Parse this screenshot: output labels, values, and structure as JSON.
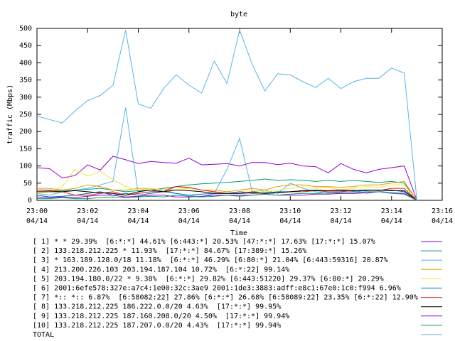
{
  "chart_data": {
    "type": "line",
    "title": "byte",
    "ylabel": "traffic (Mbps)",
    "xlabel": "Time",
    "x": [
      "23:00:00",
      "23:00:30",
      "23:01:00",
      "23:01:30",
      "23:02:00",
      "23:02:30",
      "23:03:00",
      "23:03:30",
      "23:04:00",
      "23:04:30",
      "23:05:00",
      "23:05:30",
      "23:06:00",
      "23:06:30",
      "23:07:00",
      "23:07:30",
      "23:08:00",
      "23:08:30",
      "23:09:00",
      "23:09:30",
      "23:10:00",
      "23:10:30",
      "23:11:00",
      "23:11:30",
      "23:12:00",
      "23:12:30",
      "23:13:00",
      "23:13:30",
      "23:14:00",
      "23:14:30",
      "23:15:00"
    ],
    "xlim": [
      "23:00",
      "23:16"
    ],
    "xticks": [
      {
        "value": "23:00",
        "label": [
          "23:00",
          "04/14"
        ]
      },
      {
        "value": "23:02",
        "label": [
          "23:02",
          "04/14"
        ]
      },
      {
        "value": "23:04",
        "label": [
          "23:04",
          "04/14"
        ]
      },
      {
        "value": "23:06",
        "label": [
          "23:06",
          "04/14"
        ]
      },
      {
        "value": "23:08",
        "label": [
          "23:08",
          "04/14"
        ]
      },
      {
        "value": "23:10",
        "label": [
          "23:10",
          "04/14"
        ]
      },
      {
        "value": "23:12",
        "label": [
          "23:12",
          "04/14"
        ]
      },
      {
        "value": "23:14",
        "label": [
          "23:14",
          "04/14"
        ]
      },
      {
        "value": "23:16",
        "label": [
          "23:16",
          "04/14"
        ]
      }
    ],
    "ylim": [
      0,
      500
    ],
    "yticks": [
      0,
      50,
      100,
      150,
      200,
      250,
      300,
      350,
      400,
      450,
      500
    ],
    "grid": false,
    "series": [
      {
        "name": "[ 1] * * 29.39%  [6:*:*] 44.61% [6:443:*] 20.53% [47:*:*] 17.63% [17:*:*] 15.07%",
        "color": "#9400d3",
        "values": [
          95,
          92,
          65,
          72,
          103,
          88,
          128,
          118,
          107,
          113,
          110,
          108,
          123,
          103,
          105,
          107,
          100,
          110,
          110,
          104,
          108,
          100,
          98,
          80,
          107,
          90,
          80,
          90,
          95,
          100,
          0
        ]
      },
      {
        "name": "[ 2] 133.218.212.225 * 11.93%  [17:*:*] 84.67% [17:389:*] 15.26%",
        "color": "#009e73",
        "values": [
          30,
          30,
          28,
          30,
          32,
          35,
          30,
          25,
          28,
          30,
          35,
          40,
          45,
          48,
          50,
          52,
          55,
          58,
          62,
          58,
          60,
          58,
          55,
          58,
          55,
          58,
          55,
          52,
          55,
          50,
          0
        ]
      },
      {
        "name": "[ 3] * 163.189.128.0/18 11.18%  [6:*:*] 46.29% [6:80:*] 21.04% [6:443:59316] 20.87%",
        "color": "#56b4e9",
        "values": [
          20,
          15,
          25,
          30,
          35,
          45,
          55,
          270,
          20,
          25,
          30,
          20,
          15,
          10,
          20,
          90,
          180,
          25,
          30,
          20,
          50,
          35,
          25,
          20,
          25,
          30,
          20,
          25,
          30,
          25,
          0
        ]
      },
      {
        "name": "[ 4] 213.200.226.103 203.194.187.104 10.72%  [6:*:22] 99.14%",
        "color": "#e69f00",
        "values": [
          35,
          35,
          30,
          35,
          45,
          40,
          30,
          30,
          35,
          35,
          30,
          40,
          35,
          30,
          30,
          25,
          30,
          35,
          30,
          40,
          45,
          45,
          40,
          40,
          38,
          40,
          45,
          45,
          50,
          55,
          0
        ]
      },
      {
        "name": "[ 5] 203.194.180.0/22 * 9.38%  [6:*:*] 29.82% [6:443:51220] 29.37% [6:80:*] 20.29%",
        "color": "#f0e442",
        "values": [
          20,
          25,
          40,
          90,
          70,
          85,
          60,
          40,
          30,
          35,
          30,
          30,
          35,
          30,
          25,
          20,
          25,
          30,
          25,
          30,
          35,
          40,
          35,
          38,
          30,
          35,
          40,
          38,
          45,
          45,
          0
        ]
      },
      {
        "name": "[ 6] 2001:6efe578:327e:a7c4:1e00:32c:3ae9 2001:1de3:3883:adff:e8c1:67e0:1c0:f994 6.96%",
        "color": "#0072b2",
        "values": [
          15,
          10,
          12,
          15,
          20,
          25,
          15,
          20,
          15,
          20,
          25,
          20,
          15,
          18,
          20,
          20,
          25,
          20,
          22,
          25,
          25,
          28,
          30,
          28,
          28,
          26,
          28,
          30,
          30,
          25,
          0
        ]
      },
      {
        "name": "[ 7] *:: *:: 6.87%  [6:58082:22] 27.86% [6:*:*] 26.68% [6:58089:22] 23.35% [6:*:22] 12.90%",
        "color": "#e51e10",
        "values": [
          30,
          28,
          25,
          15,
          15,
          20,
          25,
          15,
          20,
          25,
          25,
          40,
          38,
          30,
          25,
          20,
          20,
          25,
          20,
          22,
          25,
          25,
          28,
          25,
          25,
          28,
          30,
          28,
          35,
          35,
          0
        ]
      },
      {
        "name": "[ 8] 133.218.212.225 186.222.0.0/20 4.63%  [17:*:*] 99.95%",
        "color": "#000000",
        "values": [
          25,
          25,
          25,
          28,
          25,
          22,
          20,
          15,
          25,
          30,
          25,
          30,
          28,
          25,
          20,
          20,
          20,
          22,
          20,
          22,
          25,
          28,
          28,
          28,
          30,
          28,
          30,
          30,
          28,
          28,
          0
        ]
      },
      {
        "name": "[ 9] 133.218.212.225 187.160.208.0/20 4.50%  [17:*:*] 99.94%",
        "color": "#9400d3",
        "values": [
          10,
          8,
          10,
          8,
          12,
          15,
          15,
          10,
          12,
          15,
          15,
          10,
          10,
          12,
          15,
          15,
          15,
          15,
          18,
          15,
          15,
          15,
          18,
          18,
          20,
          20,
          22,
          25,
          22,
          20,
          0
        ]
      },
      {
        "name": "[10] 133.218.212.225 187.207.0.0/20 4.43%  [17:*:*] 99.94%",
        "color": "#009e73",
        "values": [
          5,
          5,
          8,
          5,
          5,
          8,
          10,
          8,
          10,
          12,
          10,
          15,
          12,
          10,
          12,
          15,
          12,
          15,
          18,
          15,
          18,
          20,
          20,
          22,
          22,
          22,
          25,
          25,
          20,
          18,
          0
        ]
      },
      {
        "name": "TOTAL",
        "color": "#56b4e9",
        "values": [
          245,
          235,
          225,
          260,
          290,
          305,
          335,
          495,
          280,
          268,
          325,
          365,
          335,
          312,
          405,
          340,
          495,
          395,
          318,
          368,
          365,
          345,
          328,
          355,
          325,
          345,
          355,
          355,
          385,
          370,
          0
        ]
      }
    ]
  }
}
